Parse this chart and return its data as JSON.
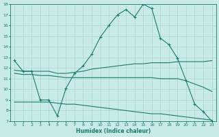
{
  "xlabel": "Humidex (Indice chaleur)",
  "background_color": "#c8eae8",
  "grid_color": "#aad4d0",
  "line_color": "#1a7a6e",
  "xlim": [
    -0.5,
    23.5
  ],
  "ylim": [
    7,
    18
  ],
  "yticks": [
    7,
    8,
    9,
    10,
    11,
    12,
    13,
    14,
    15,
    16,
    17,
    18
  ],
  "xticks": [
    0,
    1,
    2,
    3,
    4,
    5,
    6,
    7,
    8,
    9,
    10,
    11,
    12,
    13,
    14,
    15,
    16,
    17,
    18,
    19,
    20,
    21,
    22,
    23
  ],
  "line1_x": [
    0,
    1,
    2,
    3,
    4,
    5,
    6,
    7,
    8,
    9,
    10,
    11,
    12,
    13,
    14,
    15,
    16,
    17,
    18,
    19,
    20,
    21,
    22,
    23
  ],
  "line1_y": [
    12.7,
    11.7,
    11.7,
    9.0,
    9.0,
    7.5,
    10.1,
    11.5,
    12.2,
    13.3,
    14.9,
    16.0,
    17.0,
    17.5,
    16.8,
    18.0,
    17.6,
    14.8,
    14.2,
    12.9,
    10.8,
    8.6,
    7.9,
    7.0
  ],
  "line2_x": [
    0,
    1,
    2,
    3,
    4,
    5,
    6,
    7,
    8,
    9,
    10,
    11,
    12,
    13,
    14,
    15,
    16,
    17,
    18,
    19,
    20,
    21,
    22,
    23
  ],
  "line2_y": [
    11.8,
    11.7,
    11.7,
    11.7,
    11.7,
    11.5,
    11.5,
    11.6,
    11.7,
    11.9,
    12.0,
    12.1,
    12.2,
    12.3,
    12.4,
    12.4,
    12.5,
    12.5,
    12.5,
    12.6,
    12.6,
    12.6,
    12.6,
    12.7
  ],
  "line3_x": [
    0,
    1,
    2,
    3,
    4,
    5,
    6,
    7,
    8,
    9,
    10,
    11,
    12,
    13,
    14,
    15,
    16,
    17,
    18,
    19,
    20,
    21,
    22,
    23
  ],
  "line3_y": [
    11.5,
    11.4,
    11.4,
    11.3,
    11.3,
    11.2,
    11.1,
    11.1,
    11.1,
    11.1,
    11.1,
    11.1,
    11.1,
    11.1,
    11.1,
    11.1,
    11.1,
    11.0,
    11.0,
    11.0,
    10.8,
    10.5,
    10.2,
    9.8
  ],
  "line4_x": [
    0,
    1,
    2,
    3,
    4,
    5,
    6,
    7,
    8,
    9,
    10,
    11,
    12,
    13,
    14,
    15,
    16,
    17,
    18,
    19,
    20,
    21,
    22,
    23
  ],
  "line4_y": [
    8.8,
    8.8,
    8.8,
    8.8,
    8.8,
    8.7,
    8.6,
    8.6,
    8.5,
    8.4,
    8.3,
    8.2,
    8.1,
    8.0,
    7.9,
    7.8,
    7.7,
    7.7,
    7.6,
    7.5,
    7.4,
    7.3,
    7.2,
    7.1
  ]
}
